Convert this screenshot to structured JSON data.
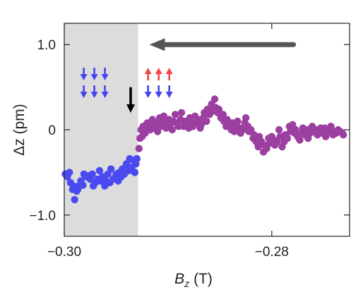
{
  "chart_data": {
    "type": "scatter",
    "xlabel": "B",
    "xlabel_sub": "z",
    "xlabel_unit": "(T)",
    "ylabel": "Δz (pm)",
    "xlim": [
      -0.3,
      -0.2725
    ],
    "ylim": [
      -1.25,
      1.25
    ],
    "x_ticks": [
      {
        "value": -0.3,
        "label": "−0.30"
      },
      {
        "value": -0.28,
        "label": "−0.28"
      }
    ],
    "y_ticks": [
      {
        "value": 1.0,
        "label": "1.0"
      },
      {
        "value": 0.0,
        "label": "0"
      },
      {
        "value": -1.0,
        "label": "−1.0"
      }
    ],
    "shaded_region": {
      "x_from": -0.3,
      "x_to": -0.2929,
      "color": "#dcdcdc"
    },
    "annotations": {
      "sweep_arrow": {
        "x_from": -0.2779,
        "x_to": -0.2918,
        "y": 1.0,
        "color": "#555555",
        "direction": "left"
      },
      "transition_arrow": {
        "x": -0.2936,
        "y_from": 0.5,
        "y_to": 0.2,
        "color": "#000000",
        "direction": "down"
      },
      "spin_left": {
        "x": -0.2971,
        "top_row": "down",
        "bottom_row": "down",
        "top_color": "#4444ee",
        "bottom_color": "#4444ee"
      },
      "spin_right": {
        "x": -0.2909,
        "top_row": "up",
        "bottom_row": "down",
        "top_color": "#f04848",
        "bottom_color": "#4444ee"
      }
    },
    "series": [
      {
        "color": "#4a4af0",
        "x": [
          -0.2999,
          -0.2997,
          -0.2995,
          -0.2994,
          -0.2992,
          -0.2991,
          -0.299,
          -0.2988,
          -0.2987,
          -0.2986,
          -0.2984,
          -0.2982,
          -0.2981,
          -0.2979,
          -0.2977,
          -0.2975,
          -0.2973,
          -0.2972,
          -0.297,
          -0.2968,
          -0.2966,
          -0.2965,
          -0.2963,
          -0.2961,
          -0.296,
          -0.2958,
          -0.2956,
          -0.2955,
          -0.2953,
          -0.2951,
          -0.295,
          -0.2948,
          -0.2947,
          -0.2945,
          -0.2944,
          -0.2942,
          -0.2941,
          -0.294,
          -0.2938,
          -0.2937,
          -0.2935,
          -0.2933,
          -0.2932,
          -0.2931,
          -0.293
        ],
        "y": [
          -0.52,
          -0.55,
          -0.5,
          -0.62,
          -0.7,
          -0.66,
          -0.82,
          -0.72,
          -0.7,
          -0.66,
          -0.6,
          -0.65,
          -0.52,
          -0.55,
          -0.54,
          -0.58,
          -0.52,
          -0.66,
          -0.62,
          -0.58,
          -0.48,
          -0.6,
          -0.55,
          -0.66,
          -0.6,
          -0.52,
          -0.62,
          -0.46,
          -0.58,
          -0.56,
          -0.52,
          -0.6,
          -0.5,
          -0.55,
          -0.46,
          -0.52,
          -0.44,
          -0.4,
          -0.48,
          -0.34,
          -0.44,
          -0.36,
          -0.5,
          -0.4,
          -0.34
        ]
      },
      {
        "color": "#9b3fa0",
        "x": [
          -0.2928,
          -0.2927,
          -0.2926,
          -0.2925,
          -0.2924,
          -0.2922,
          -0.2921,
          -0.292,
          -0.2918,
          -0.2917,
          -0.2915,
          -0.2914,
          -0.2913,
          -0.2911,
          -0.291,
          -0.2908,
          -0.2907,
          -0.2905,
          -0.2904,
          -0.2902,
          -0.2901,
          -0.2899,
          -0.2898,
          -0.2896,
          -0.2895,
          -0.2893,
          -0.2892,
          -0.289,
          -0.2888,
          -0.2887,
          -0.2885,
          -0.2884,
          -0.2882,
          -0.288,
          -0.2879,
          -0.2877,
          -0.2876,
          -0.2874,
          -0.2873,
          -0.2871,
          -0.2869,
          -0.2868,
          -0.2866,
          -0.2865,
          -0.2863,
          -0.2862,
          -0.286,
          -0.2858,
          -0.2857,
          -0.2855,
          -0.2854,
          -0.2852,
          -0.2851,
          -0.2849,
          -0.2847,
          -0.2846,
          -0.2844,
          -0.2843,
          -0.2841,
          -0.2839,
          -0.2838,
          -0.2836,
          -0.2835,
          -0.2833,
          -0.2831,
          -0.283,
          -0.2828,
          -0.2826,
          -0.2825,
          -0.2823,
          -0.2822,
          -0.282,
          -0.2818,
          -0.2817,
          -0.2815,
          -0.2813,
          -0.2812,
          -0.281,
          -0.2808,
          -0.2807,
          -0.2805,
          -0.2803,
          -0.2802,
          -0.28,
          -0.2798,
          -0.2797,
          -0.2795,
          -0.2793,
          -0.2792,
          -0.279,
          -0.2788,
          -0.2787,
          -0.2785,
          -0.2783,
          -0.2782,
          -0.278,
          -0.2778,
          -0.2777,
          -0.2775,
          -0.2773,
          -0.2771,
          -0.277,
          -0.2768,
          -0.2766,
          -0.2765,
          -0.2763,
          -0.2761,
          -0.276,
          -0.2758,
          -0.2756,
          -0.2755,
          -0.2753,
          -0.2751,
          -0.2749,
          -0.2748,
          -0.2746,
          -0.2744,
          -0.2743,
          -0.2741,
          -0.2739,
          -0.2738,
          -0.2736,
          -0.2734,
          -0.2732,
          -0.2731
        ],
        "y": [
          -0.22,
          -0.1,
          0.0,
          -0.08,
          0.04,
          -0.04,
          0.02,
          0.08,
          0.04,
          0.0,
          0.12,
          0.06,
          0.02,
          0.08,
          -0.02,
          0.14,
          0.04,
          0.1,
          0.16,
          0.02,
          0.08,
          0.12,
          0.06,
          0.0,
          0.1,
          0.18,
          0.08,
          0.04,
          0.12,
          0.2,
          0.04,
          0.1,
          0.06,
          0.02,
          0.14,
          0.08,
          0.04,
          0.16,
          0.08,
          0.12,
          0.02,
          0.06,
          0.14,
          0.2,
          0.1,
          0.24,
          0.18,
          0.3,
          0.22,
          0.36,
          0.26,
          0.2,
          0.24,
          0.14,
          0.18,
          0.1,
          0.04,
          0.12,
          0.06,
          0.0,
          0.08,
          -0.02,
          0.04,
          0.1,
          0.02,
          -0.04,
          0.0,
          0.08,
          0.14,
          0.04,
          -0.02,
          0.0,
          -0.1,
          -0.06,
          -0.14,
          -0.2,
          -0.08,
          -0.14,
          -0.26,
          -0.18,
          -0.22,
          -0.1,
          -0.16,
          -0.08,
          -0.12,
          -0.18,
          -0.14,
          0.0,
          -0.08,
          -0.2,
          -0.14,
          -0.06,
          -0.1,
          0.04,
          -0.02,
          0.06,
          -0.04,
          0.0,
          -0.08,
          -0.12,
          -0.04,
          0.02,
          -0.06,
          0.0,
          -0.1,
          -0.04,
          0.04,
          -0.02,
          0.0,
          -0.06,
          -0.02,
          0.02,
          -0.04,
          0.02,
          -0.08,
          -0.02,
          0.0,
          0.04,
          -0.06,
          -0.02,
          -0.04,
          0.0,
          -0.02,
          -0.04,
          -0.06
        ]
      }
    ]
  }
}
